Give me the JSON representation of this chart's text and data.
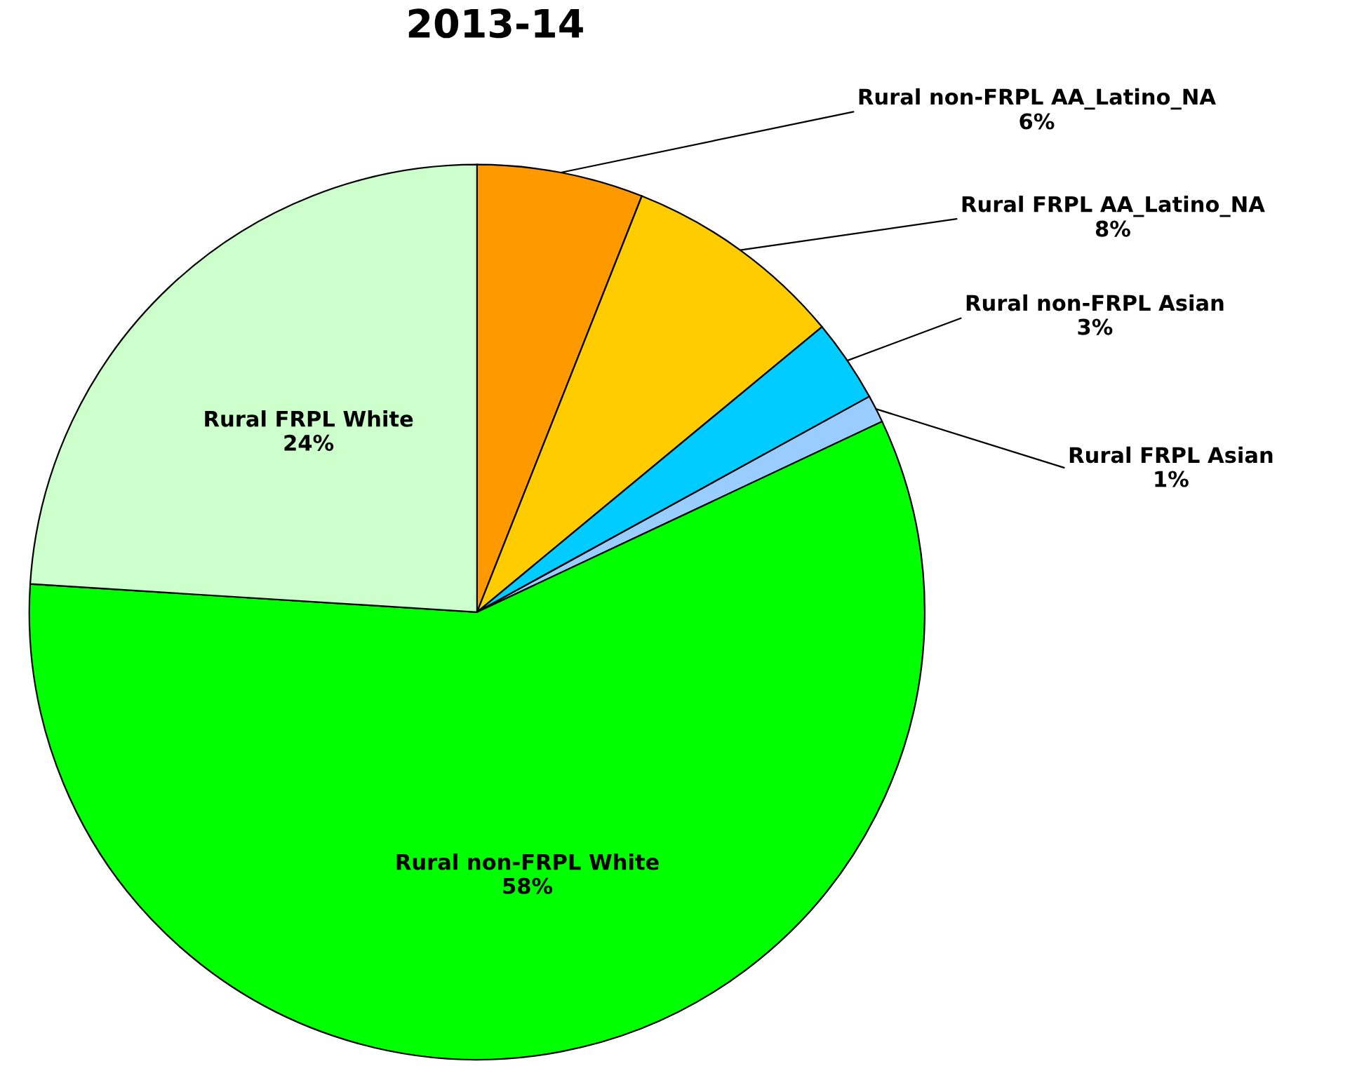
{
  "chart_data": {
    "type": "pie",
    "title": "2013-14",
    "categories": [
      "Rural non-FRPL AA_Latino_NA",
      "Rural FRPL AA_Latino_NA",
      "Rural non-FRPL Asian",
      "Rural FRPL Asian",
      "Rural non-FRPL White",
      "Rural FRPL White"
    ],
    "values": [
      6,
      8,
      3,
      1,
      58,
      24
    ],
    "colors": [
      "#ff9900",
      "#ffcc00",
      "#00ccff",
      "#99ccff",
      "#00ff00",
      "#ccffcc"
    ],
    "value_labels": [
      "6%",
      "8%",
      "3%",
      "1%",
      "58%",
      "24%"
    ]
  }
}
